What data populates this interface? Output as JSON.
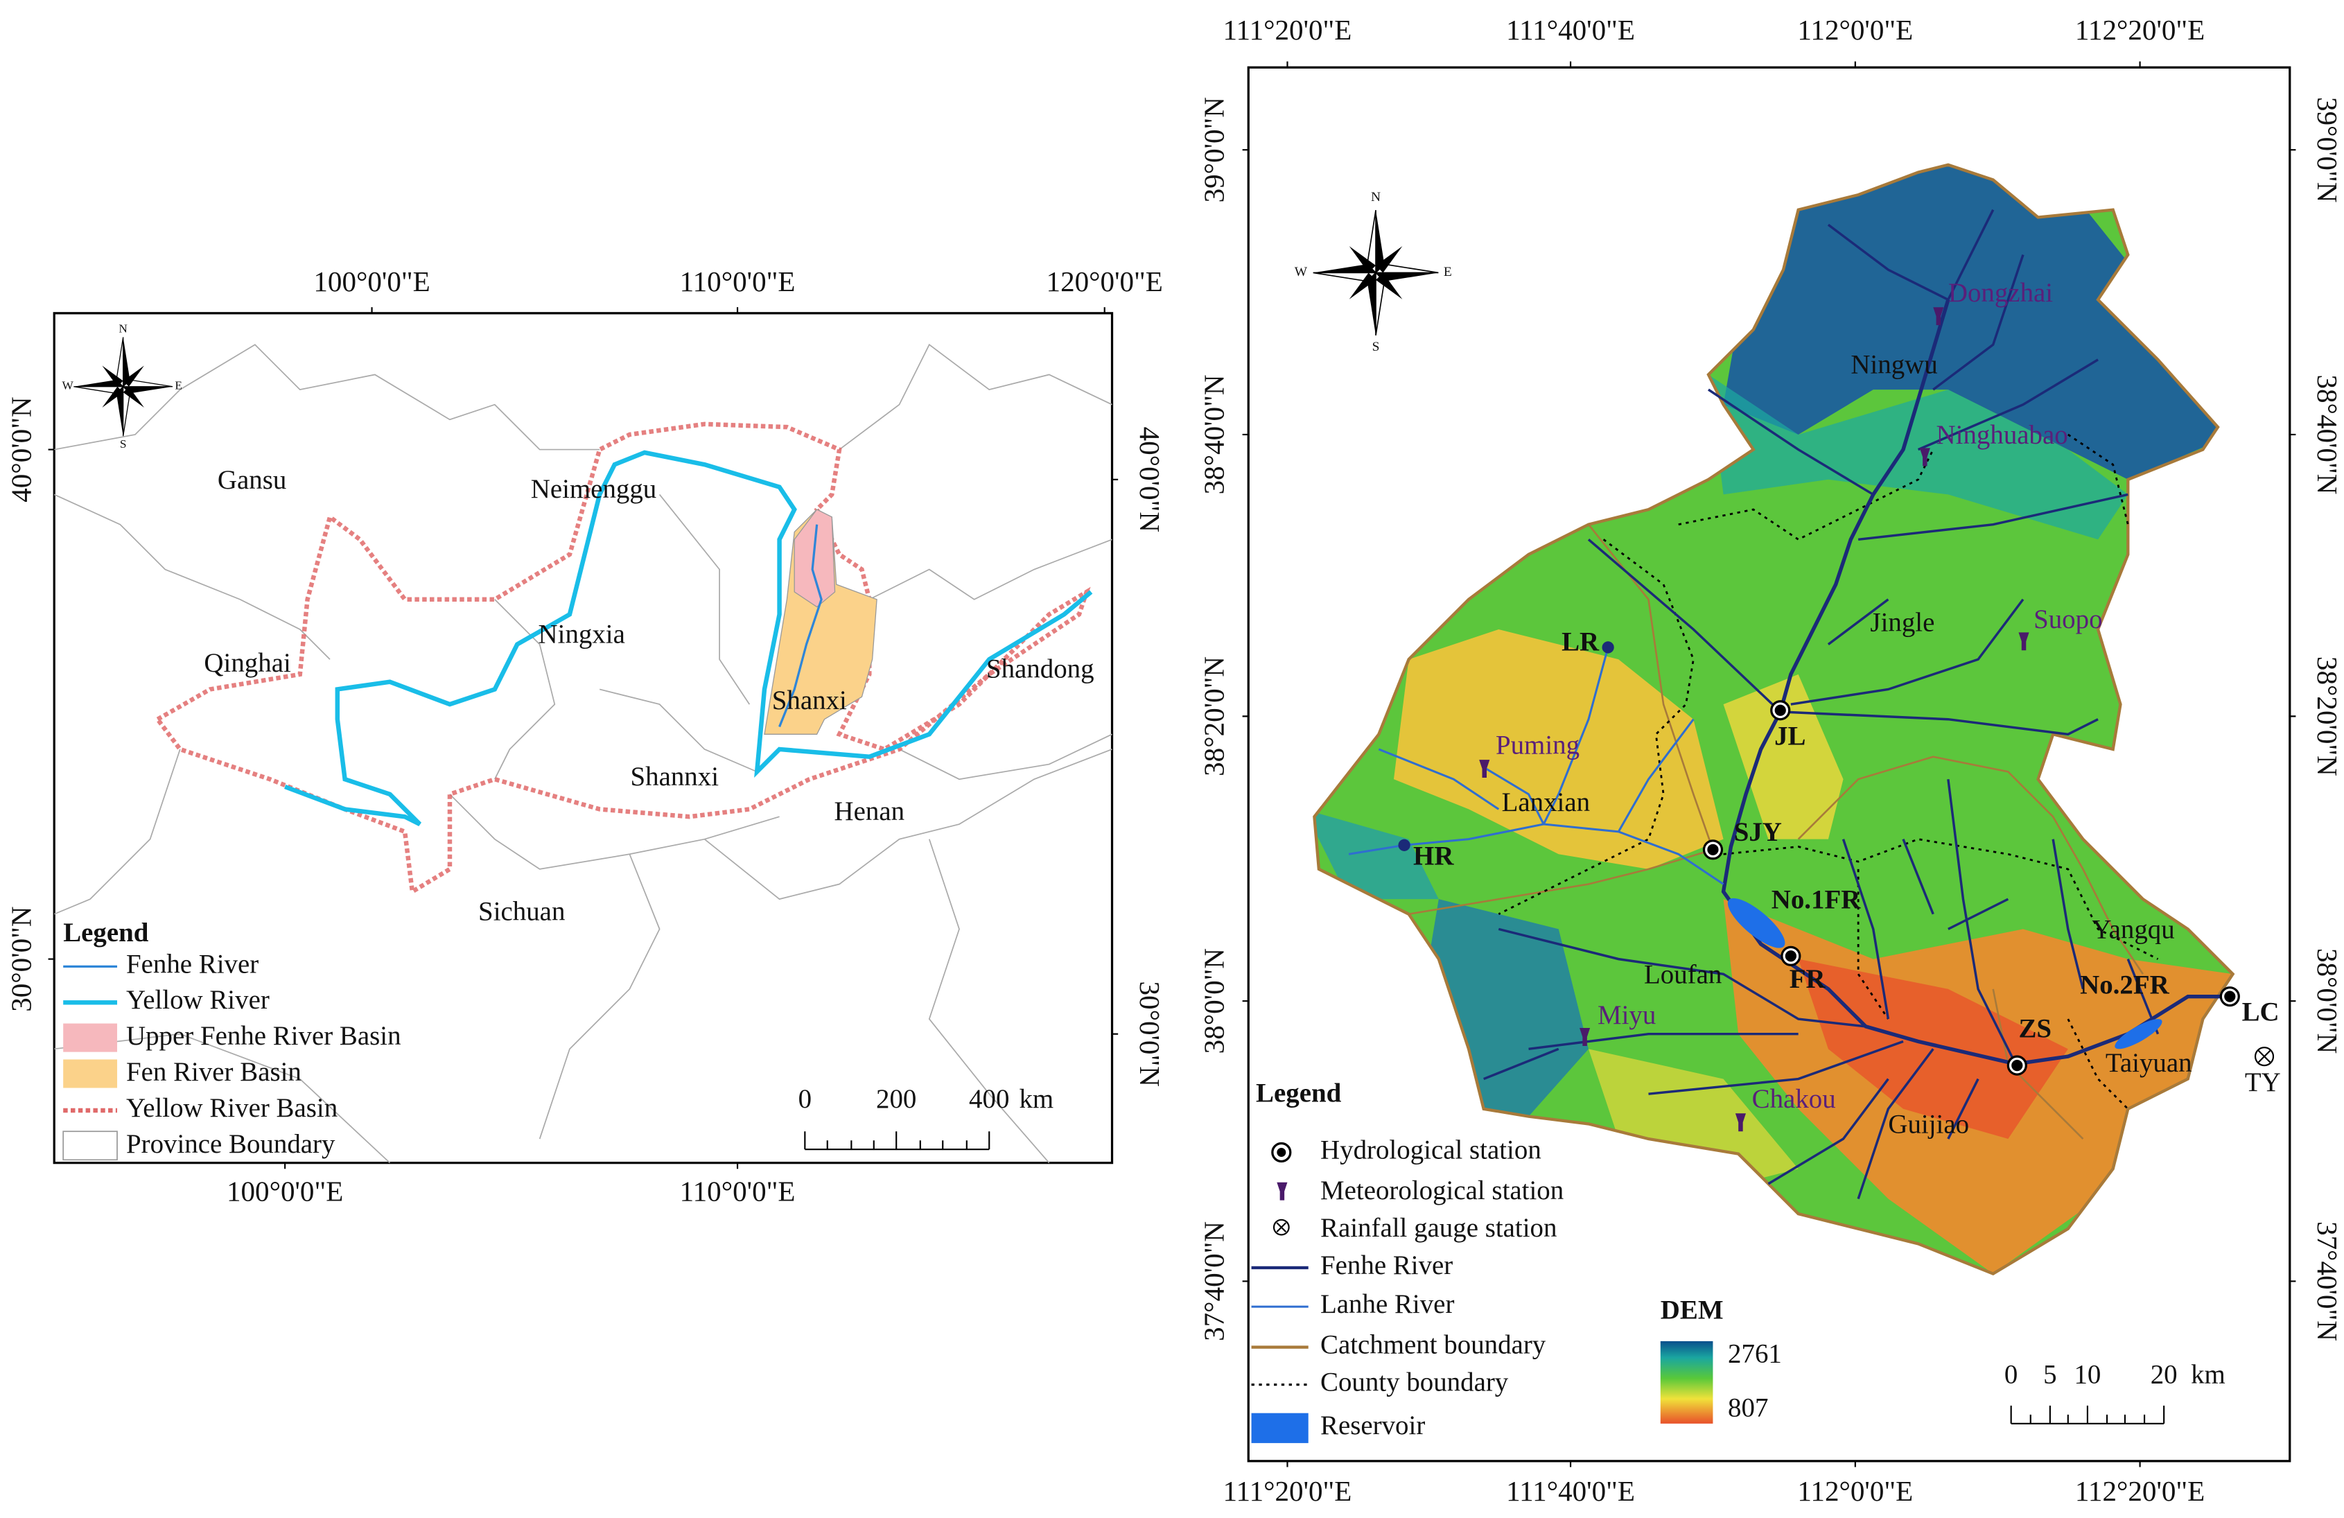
{
  "left_map": {
    "lon_top": [
      "100°0'0\"E",
      "110°0'0\"E",
      "120°0'0\"E"
    ],
    "lon_bottom": [
      "100°0'0\"E",
      "110°0'0\"E"
    ],
    "lat_left": [
      "40°0'0\"N",
      "30°0'0\"N"
    ],
    "lat_right": [
      "40°0'0\"N",
      "30°0'0\"N"
    ],
    "compass": [
      "N",
      "S",
      "W",
      "E"
    ],
    "places": [
      "Gansu",
      "Neimenggu",
      "Qinghai",
      "Ningxia",
      "Shanxi",
      "Shandong",
      "Shannxi",
      "Henan",
      "Sichuan"
    ],
    "legend": {
      "title": "Legend",
      "items": [
        "Fenhe River",
        "Yellow River",
        "Upper Fenhe River Basin",
        "Fen River Basin",
        "Yellow River Basin",
        "Province Boundary"
      ]
    },
    "scale": {
      "ticks": [
        0,
        200,
        400
      ],
      "unit": "km"
    }
  },
  "right_map": {
    "lon_top": [
      "111°20'0\"E",
      "111°40'0\"E",
      "112°0'0\"E",
      "112°20'0\"E"
    ],
    "lon_bottom": [
      "111°20'0\"E",
      "111°40'0\"E",
      "112°0'0\"E",
      "112°20'0\"E"
    ],
    "lat_left": [
      "39°0'0\"N",
      "38°40'0\"N",
      "38°20'0\"N",
      "38°0'0\"N",
      "37°40'0\"N"
    ],
    "lat_right": [
      "39°0'0\"N",
      "38°40'0\"N",
      "38°20'0\"N",
      "38°0'0\"N",
      "37°40'0\"N"
    ],
    "compass": [
      "N",
      "S",
      "W",
      "E"
    ],
    "places": [
      "Dongzhai",
      "Ningwu",
      "Ninghuabao",
      "Jingle",
      "Suopo",
      "LR",
      "JL",
      "Puming",
      "Lanxian",
      "SJY",
      "HR",
      "No.1FR",
      "Loufan",
      "FR",
      "Miyu",
      "ZS",
      "Chakou",
      "Guijiao",
      "Yangqu",
      "No.2FR",
      "Taiyuan",
      "LC",
      "TY"
    ],
    "legend": {
      "title": "Legend",
      "items": [
        "Hydrological station",
        "Meteorological station",
        "Rainfall gauge station",
        "Fenhe River",
        "Lanhe River",
        "Catchment boundary",
        "County boundary",
        "Reservoir"
      ]
    },
    "dem": {
      "title": "DEM",
      "max": 2761,
      "min": 807
    },
    "scale": {
      "ticks": [
        0,
        5,
        10,
        20
      ],
      "unit": "km"
    }
  }
}
